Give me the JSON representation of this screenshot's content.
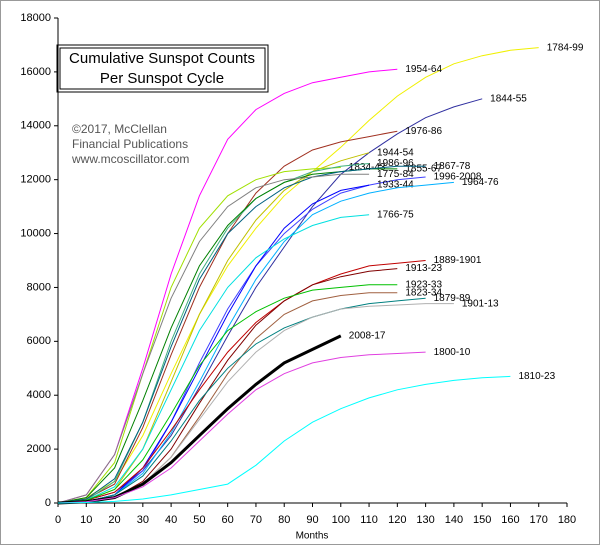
{
  "chart_data": {
    "type": "line",
    "title": "Cumulative Sunspot Counts",
    "subtitle": "Per Sunspot Cycle",
    "annotations": [
      "©2017, McClellan",
      "Financial Publications",
      "www.mcoscillator.com"
    ],
    "x_label": "Months",
    "x": [
      0,
      10,
      20,
      30,
      40,
      50,
      60,
      70,
      80,
      90,
      100,
      110,
      120,
      130,
      140,
      150,
      160,
      170,
      180
    ],
    "xlim": [
      0,
      180
    ],
    "xticks": [
      0,
      10,
      20,
      30,
      40,
      50,
      60,
      70,
      80,
      90,
      100,
      110,
      120,
      130,
      140,
      150,
      160,
      170,
      180
    ],
    "ylim": [
      0,
      18000
    ],
    "yticks": [
      0,
      2000,
      4000,
      6000,
      8000,
      10000,
      12000,
      14000,
      16000,
      18000
    ],
    "grid": false,
    "series": [
      {
        "name": "1784-99",
        "color": "#f0f000",
        "values": [
          0,
          200,
          800,
          2500,
          4800,
          7000,
          8800,
          10200,
          11400,
          12300,
          13200,
          14200,
          15100,
          15800,
          16300,
          16600,
          16800,
          16900,
          null
        ]
      },
      {
        "name": "1954-64",
        "color": "#ff00ff",
        "values": [
          0,
          300,
          1800,
          5000,
          8500,
          11400,
          13500,
          14600,
          15200,
          15600,
          15800,
          16000,
          16100,
          null,
          null,
          null,
          null,
          null,
          null
        ]
      },
      {
        "name": "1844-55",
        "color": "#3030a0",
        "values": [
          0,
          100,
          400,
          1200,
          2500,
          4300,
          6200,
          8000,
          9500,
          11000,
          12200,
          13000,
          13700,
          14300,
          14700,
          15000,
          null,
          null,
          null
        ]
      },
      {
        "name": "1976-86",
        "color": "#a03020",
        "values": [
          0,
          150,
          700,
          2800,
          5500,
          8000,
          10000,
          11500,
          12500,
          13100,
          13400,
          13600,
          13800,
          null,
          null,
          null,
          null,
          null,
          null
        ]
      },
      {
        "name": "1944-54",
        "color": "#c0c000",
        "values": [
          0,
          100,
          500,
          2000,
          4500,
          7000,
          9000,
          10500,
          11600,
          12300,
          12700,
          13000,
          null,
          null,
          null,
          null,
          null,
          null,
          null
        ]
      },
      {
        "name": "1834-43",
        "color": "#a0e000",
        "values": [
          0,
          200,
          1500,
          4800,
          8000,
          10200,
          11400,
          12000,
          12300,
          12400,
          12450,
          null,
          null,
          null,
          null,
          null,
          null,
          null,
          null
        ]
      },
      {
        "name": "1986-96",
        "color": "#40b080",
        "values": [
          0,
          100,
          800,
          3000,
          6000,
          8500,
          10200,
          11300,
          11900,
          12300,
          12500,
          12600,
          null,
          null,
          null,
          null,
          null,
          null,
          null
        ]
      },
      {
        "name": "1855-67",
        "color": "#008000",
        "values": [
          0,
          200,
          1300,
          3800,
          6500,
          8800,
          10300,
          11300,
          11900,
          12200,
          12300,
          12400,
          12400,
          null,
          null,
          null,
          null,
          null,
          null
        ]
      },
      {
        "name": "1867-78",
        "color": "#006080",
        "values": [
          0,
          150,
          900,
          3000,
          5800,
          8300,
          10000,
          11000,
          11700,
          12100,
          12300,
          12400,
          12500,
          12500,
          null,
          null,
          null,
          null,
          null
        ]
      },
      {
        "name": "1996-2008",
        "color": "#4040ff",
        "values": [
          0,
          50,
          300,
          1200,
          3000,
          5200,
          7200,
          8800,
          10000,
          10900,
          11500,
          11800,
          12000,
          12100,
          null,
          null,
          null,
          null,
          null
        ]
      },
      {
        "name": "1775-84",
        "color": "#808080",
        "values": [
          0,
          300,
          1800,
          4800,
          7600,
          9700,
          11000,
          11700,
          12000,
          12100,
          12200,
          12200,
          null,
          null,
          null,
          null,
          null,
          null,
          null
        ]
      },
      {
        "name": "1933-44",
        "color": "#0000ff",
        "values": [
          0,
          50,
          300,
          1300,
          3000,
          5000,
          7000,
          8800,
          10200,
          11100,
          11600,
          11800,
          null,
          null,
          null,
          null,
          null,
          null,
          null
        ]
      },
      {
        "name": "1964-76",
        "color": "#00b0ff",
        "values": [
          0,
          50,
          300,
          1100,
          2600,
          4500,
          6500,
          8300,
          9700,
          10700,
          11200,
          11500,
          11700,
          11800,
          11900,
          null,
          null,
          null,
          null
        ]
      },
      {
        "name": "1766-75",
        "color": "#00e0e0",
        "values": [
          0,
          100,
          600,
          2000,
          4200,
          6400,
          8000,
          9100,
          9800,
          10300,
          10600,
          10700,
          null,
          null,
          null,
          null,
          null,
          null,
          null
        ]
      },
      {
        "name": "1889-1901",
        "color": "#c00000",
        "values": [
          0,
          100,
          400,
          1300,
          2700,
          4200,
          5600,
          6700,
          7500,
          8100,
          8500,
          8800,
          8900,
          9000,
          null,
          null,
          null,
          null,
          null
        ]
      },
      {
        "name": "1913-23",
        "color": "#800000",
        "values": [
          0,
          50,
          200,
          800,
          2000,
          3700,
          5300,
          6600,
          7500,
          8100,
          8400,
          8600,
          8700,
          null,
          null,
          null,
          null,
          null,
          null
        ]
      },
      {
        "name": "1923-33",
        "color": "#00c000",
        "values": [
          0,
          100,
          500,
          1600,
          3300,
          5100,
          6400,
          7100,
          7600,
          7900,
          8000,
          8100,
          8100,
          null,
          null,
          null,
          null,
          null,
          null
        ]
      },
      {
        "name": "1823-34",
        "color": "#a06040",
        "values": [
          0,
          50,
          200,
          700,
          1700,
          3200,
          4800,
          6100,
          7000,
          7500,
          7700,
          7800,
          7800,
          null,
          null,
          null,
          null,
          null,
          null
        ]
      },
      {
        "name": "1879-89",
        "color": "#008080",
        "values": [
          0,
          50,
          300,
          1000,
          2300,
          3800,
          5000,
          5900,
          6500,
          6900,
          7200,
          7400,
          7500,
          7600,
          null,
          null,
          null,
          null,
          null
        ]
      },
      {
        "name": "1901-13",
        "color": "#b0b0b0",
        "values": [
          0,
          50,
          200,
          700,
          1700,
          3100,
          4500,
          5600,
          6400,
          6900,
          7200,
          7300,
          7350,
          7400,
          7400,
          null,
          null,
          null,
          null
        ]
      },
      {
        "name": "2008-17",
        "color": "#000000",
        "width": 3,
        "values": [
          0,
          50,
          200,
          700,
          1500,
          2500,
          3500,
          4400,
          5200,
          5700,
          6200,
          null,
          null,
          null,
          null,
          null,
          null,
          null,
          null
        ]
      },
      {
        "name": "1800-10",
        "color": "#e040e0",
        "values": [
          0,
          50,
          200,
          600,
          1300,
          2300,
          3300,
          4200,
          4800,
          5200,
          5400,
          5500,
          5550,
          5600,
          null,
          null,
          null,
          null,
          null
        ]
      },
      {
        "name": "1810-23",
        "color": "#00ffff",
        "values": [
          0,
          20,
          60,
          150,
          300,
          500,
          700,
          1400,
          2300,
          3000,
          3500,
          3900,
          4200,
          4400,
          4550,
          4650,
          4700,
          null,
          null
        ]
      }
    ]
  }
}
